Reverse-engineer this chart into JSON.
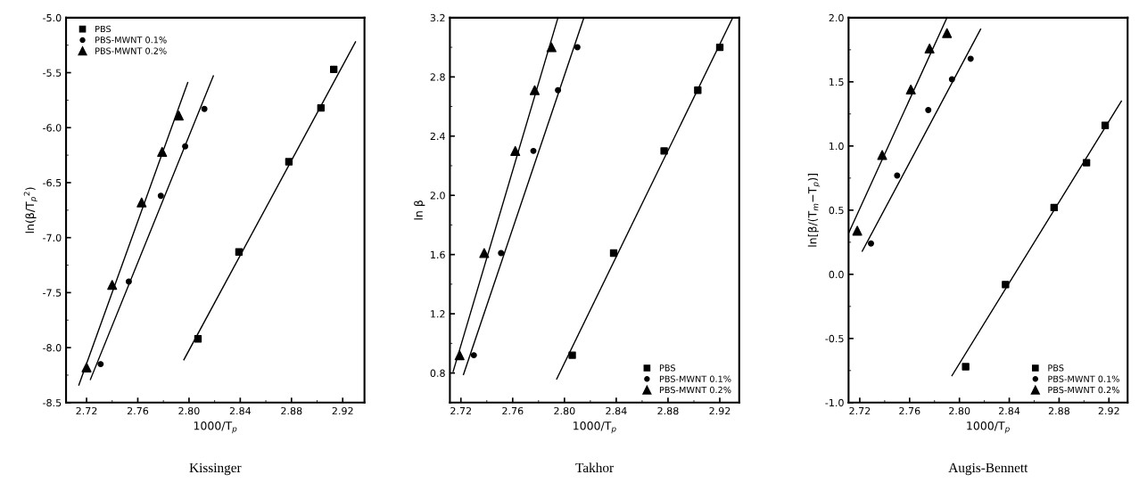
{
  "chart_data": [
    {
      "type": "scatter",
      "title": "Kissinger",
      "xlabel": "1000/T$_{p}$",
      "ylabel": "ln(β/T$_{p}$$^{2}$)",
      "xlim": [
        2.704,
        2.937
      ],
      "xticks": [
        {
          "value": 2.72,
          "label": "2.72"
        },
        {
          "value": 2.76,
          "label": "2.76"
        },
        {
          "value": 2.8,
          "label": "2.80"
        },
        {
          "value": 2.84,
          "label": "2.84"
        },
        {
          "value": 2.88,
          "label": "2.88"
        },
        {
          "value": 2.92,
          "label": "2.92"
        }
      ],
      "ylim": [
        -8.5,
        -5.0
      ],
      "yticks": [
        {
          "value": -5.0,
          "label": "-5.0"
        },
        {
          "value": -5.5,
          "label": "-5.5"
        },
        {
          "value": -6.0,
          "label": "-6.0"
        },
        {
          "value": -6.5,
          "label": "-6.5"
        },
        {
          "value": -7.0,
          "label": "-7.0"
        },
        {
          "value": -7.5,
          "label": "-7.5"
        },
        {
          "value": -8.0,
          "label": "-8.0"
        },
        {
          "value": -8.5,
          "label": "-8.5"
        }
      ],
      "legend": "top left",
      "grid": false,
      "series": [
        {
          "name": "PBS",
          "color": "#000000",
          "marker": "square",
          "x": [
            2.807,
            2.839,
            2.878,
            2.903,
            2.913
          ],
          "values": [
            -7.92,
            -7.13,
            -6.31,
            -5.82,
            -5.47
          ]
        },
        {
          "name": "PBS-MWNT 0.1%",
          "color": "#000000",
          "marker": "circle",
          "x": [
            2.731,
            2.753,
            2.778,
            2.797,
            2.812
          ],
          "values": [
            -8.15,
            -7.4,
            -6.62,
            -6.17,
            -5.83
          ]
        },
        {
          "name": "PBS-MWNT 0.2%",
          "color": "#000000",
          "marker": "triangle",
          "x": [
            2.72,
            2.74,
            2.763,
            2.779,
            2.792
          ],
          "values": [
            -8.18,
            -7.43,
            -6.68,
            -6.22,
            -5.89
          ]
        },
        {
          "type": "line",
          "color": "#000000",
          "x": [
            2.796,
            2.93
          ],
          "values": [
            -8.11,
            -5.22
          ]
        },
        {
          "type": "line",
          "color": "#000000",
          "x": [
            2.723,
            2.819
          ],
          "values": [
            -8.29,
            -5.53
          ]
        },
        {
          "type": "line",
          "color": "#000000",
          "x": [
            2.714,
            2.799
          ],
          "values": [
            -8.34,
            -5.59
          ]
        }
      ]
    },
    {
      "type": "scatter",
      "title": "Takhor",
      "xlabel": "1000/T$_{p}$",
      "ylabel": "ln β",
      "xlim": [
        2.7115,
        2.935
      ],
      "xticks": [
        {
          "value": 2.72,
          "label": "2.72"
        },
        {
          "value": 2.76,
          "label": "2.76"
        },
        {
          "value": 2.8,
          "label": "2.80"
        },
        {
          "value": 2.84,
          "label": "2.84"
        },
        {
          "value": 2.88,
          "label": "2.88"
        },
        {
          "value": 2.92,
          "label": "2.92"
        }
      ],
      "ylim": [
        0.6,
        3.2
      ],
      "yticks": [
        0.8,
        1.2,
        1.6,
        {
          "value": 2.0,
          "label": "2.0"
        },
        2.4,
        2.8,
        3.2
      ],
      "legend": "bottom right",
      "grid": false,
      "series": [
        {
          "name": "PBS",
          "color": "#000000",
          "marker": "square",
          "x": [
            2.806,
            2.838,
            2.877,
            2.903,
            2.92
          ],
          "values": [
            0.92,
            1.61,
            2.3,
            2.71,
            3.0
          ]
        },
        {
          "name": "PBS-MWNT 0.1%",
          "color": "#000000",
          "marker": "circle",
          "x": [
            2.73,
            2.751,
            2.776,
            2.795,
            2.81
          ],
          "values": [
            0.92,
            1.61,
            2.3,
            2.71,
            3.0
          ]
        },
        {
          "name": "PBS-MWNT 0.2%",
          "color": "#000000",
          "marker": "triangle",
          "x": [
            2.719,
            2.738,
            2.762,
            2.777,
            2.79
          ],
          "values": [
            0.92,
            1.61,
            2.3,
            2.71,
            3.0
          ]
        },
        {
          "type": "line",
          "color": "#000000",
          "x": [
            2.794,
            2.93
          ],
          "values": [
            0.76,
            3.2
          ]
        },
        {
          "type": "line",
          "color": "#000000",
          "x": [
            2.722,
            2.815
          ],
          "values": [
            0.79,
            3.2
          ]
        },
        {
          "type": "line",
          "color": "#000000",
          "x": [
            2.714,
            2.795
          ],
          "values": [
            0.81,
            3.2
          ]
        }
      ]
    },
    {
      "type": "scatter",
      "title": "Augis-Bennett",
      "xlabel": "1000/T$_{p}$",
      "ylabel": "ln[β/(T$_{m}$−T$_{p}$)]",
      "xlim": [
        2.711,
        2.935
      ],
      "xticks": [
        {
          "value": 2.72,
          "label": "2.72"
        },
        {
          "value": 2.76,
          "label": "2.76"
        },
        {
          "value": 2.8,
          "label": "2.80"
        },
        {
          "value": 2.84,
          "label": "2.84"
        },
        {
          "value": 2.88,
          "label": "2.88"
        },
        {
          "value": 2.92,
          "label": "2.92"
        }
      ],
      "ylim": [
        -1.0,
        2.0
      ],
      "yticks": [
        {
          "value": -1.0,
          "label": "-1.0"
        },
        {
          "value": -0.5,
          "label": "-0.5"
        },
        {
          "value": 0.0,
          "label": "0.0"
        },
        {
          "value": 0.5,
          "label": "0.5"
        },
        {
          "value": 1.0,
          "label": "1.0"
        },
        {
          "value": 1.5,
          "label": "1.5"
        },
        {
          "value": 2.0,
          "label": "2.0"
        }
      ],
      "legend": "bottom right",
      "grid": false,
      "series": [
        {
          "name": "PBS",
          "color": "#000000",
          "marker": "square",
          "x": [
            2.805,
            2.837,
            2.876,
            2.902,
            2.917
          ],
          "values": [
            -0.72,
            -0.08,
            0.52,
            0.87,
            1.16
          ]
        },
        {
          "name": "PBS-MWNT 0.1%",
          "color": "#000000",
          "marker": "circle",
          "x": [
            2.729,
            2.75,
            2.775,
            2.794,
            2.809
          ],
          "values": [
            0.24,
            0.77,
            1.28,
            1.52,
            1.68
          ]
        },
        {
          "name": "PBS-MWNT 0.2%",
          "color": "#000000",
          "marker": "triangle",
          "x": [
            2.718,
            2.738,
            2.761,
            2.776,
            2.79
          ],
          "values": [
            0.34,
            0.93,
            1.44,
            1.76,
            1.88
          ]
        },
        {
          "type": "line",
          "color": "#000000",
          "x": [
            2.794,
            2.93
          ],
          "values": [
            -0.79,
            1.35
          ]
        },
        {
          "type": "line",
          "color": "#000000",
          "x": [
            2.722,
            2.817
          ],
          "values": [
            0.18,
            1.91
          ]
        },
        {
          "type": "line",
          "color": "#000000",
          "x": [
            2.711,
            2.79
          ],
          "values": [
            0.32,
            2.0
          ]
        }
      ]
    }
  ]
}
